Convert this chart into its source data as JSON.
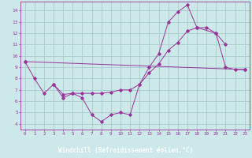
{
  "xlabel": "Windchill (Refroidissement éolien,°C)",
  "xlim": [
    -0.5,
    23.5
  ],
  "ylim": [
    3.5,
    14.8
  ],
  "xticks": [
    0,
    1,
    2,
    3,
    4,
    5,
    6,
    7,
    8,
    9,
    10,
    11,
    12,
    13,
    14,
    15,
    16,
    17,
    18,
    19,
    20,
    21,
    22,
    23
  ],
  "yticks": [
    4,
    5,
    6,
    7,
    8,
    9,
    10,
    11,
    12,
    13,
    14
  ],
  "bg_color": "#cce8e8",
  "grid_color": "#aacccc",
  "line_color": "#993399",
  "xlabel_bg": "#330066",
  "xlabel_fg": "#ffffff",
  "line1_x": [
    0,
    1,
    2,
    3,
    4,
    5,
    6,
    7,
    8,
    9,
    10,
    11,
    12,
    13,
    14,
    15,
    16,
    17,
    18,
    20,
    21
  ],
  "line1_y": [
    9.5,
    8.0,
    6.7,
    7.5,
    6.6,
    6.7,
    6.3,
    4.8,
    4.2,
    4.8,
    5.0,
    4.8,
    7.5,
    9.0,
    10.2,
    13.0,
    13.9,
    14.5,
    12.5,
    12.0,
    11.0
  ],
  "line2_x": [
    3,
    4,
    5,
    6,
    7,
    8,
    9,
    10,
    11,
    12,
    13,
    14,
    15,
    16,
    17,
    18,
    19,
    20,
    21,
    22,
    23
  ],
  "line2_y": [
    7.5,
    6.3,
    6.7,
    6.7,
    6.7,
    6.7,
    6.8,
    7.0,
    7.0,
    7.5,
    8.5,
    9.3,
    10.5,
    11.2,
    12.2,
    12.5,
    12.5,
    12.0,
    9.0,
    8.8,
    8.8
  ],
  "line3_x": [
    0,
    23
  ],
  "line3_y": [
    9.5,
    8.8
  ]
}
